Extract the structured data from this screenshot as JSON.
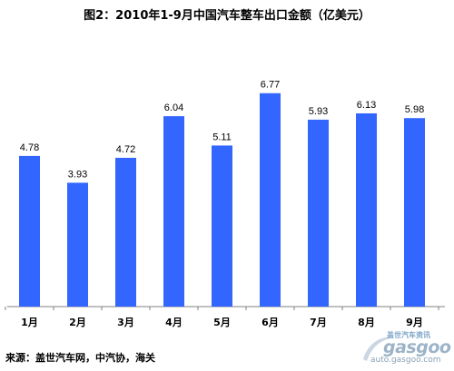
{
  "title": "图2：2010年1-9月中国汽车整车出口金额（亿美元）",
  "source": "来源：盖世汽车网，中汽协，海关",
  "watermark": {
    "cn": "盖世汽车资讯",
    "brand": "gasgoo",
    "url": "auto.gasgoo.com"
  },
  "colors": {
    "bar": "#3366FF",
    "axis": "#808080"
  },
  "chart_data": {
    "type": "bar",
    "title": "图2：2010年1-9月中国汽车整车出口金额（亿美元）",
    "categories": [
      "1月",
      "2月",
      "3月",
      "4月",
      "5月",
      "6月",
      "7月",
      "8月",
      "9月"
    ],
    "values": [
      4.78,
      3.93,
      4.72,
      6.04,
      5.11,
      6.77,
      5.93,
      6.13,
      5.98
    ],
    "value_labels": [
      "4.78",
      "3.93",
      "4.72",
      "6.04",
      "5.11",
      "6.77",
      "5.93",
      "6.13",
      "5.98"
    ],
    "xlabel": "",
    "ylabel": "",
    "ylim": [
      0,
      8
    ],
    "grid": false,
    "legend": "none"
  }
}
